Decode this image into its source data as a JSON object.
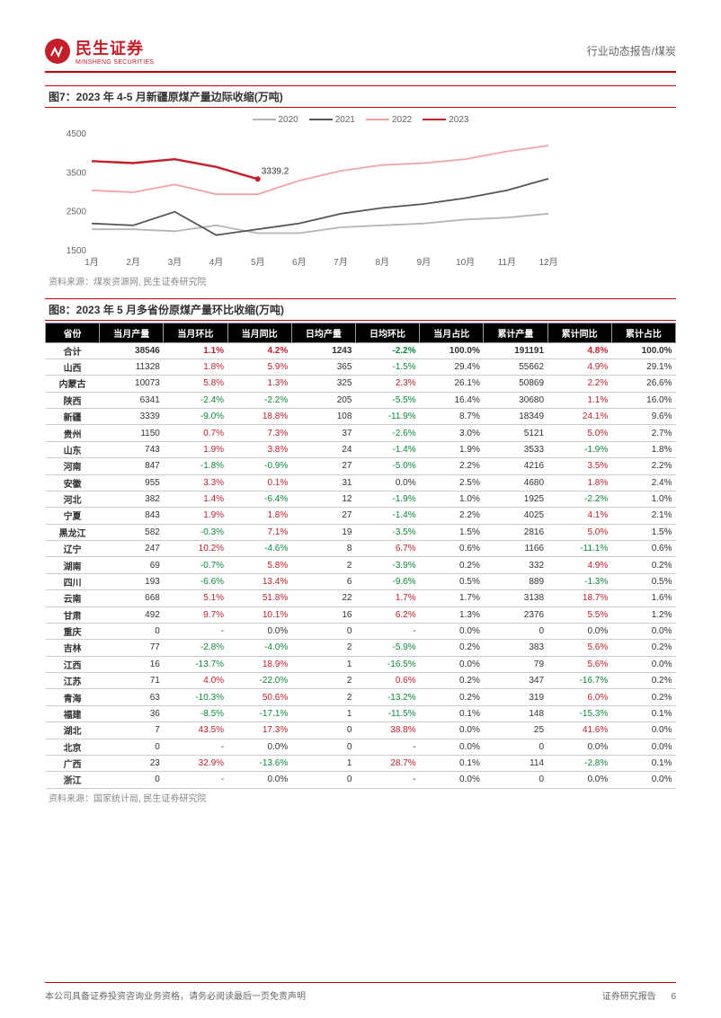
{
  "header": {
    "company_cn": "民生证券",
    "company_en": "MINSHENG SECURITIES",
    "doc_type": "行业动态报告/煤炭"
  },
  "figure7": {
    "title": "图7：2023 年 4-5 月新疆原煤产量边际收缩(万吨)",
    "source": "资料来源：煤炭资源网, 民生证券研究院",
    "type": "line",
    "categories": [
      "1月",
      "2月",
      "3月",
      "4月",
      "5月",
      "6月",
      "7月",
      "8月",
      "9月",
      "10月",
      "11月",
      "12月"
    ],
    "ylim": [
      1500,
      4500
    ],
    "ytick_step": 1000,
    "series": [
      {
        "name": "2020",
        "color": "#b5b5b5",
        "data": [
          2050,
          2050,
          2000,
          2150,
          1950,
          1950,
          2100,
          2150,
          2200,
          2300,
          2350,
          2450
        ]
      },
      {
        "name": "2021",
        "color": "#555555",
        "data": [
          2200,
          2150,
          2500,
          1900,
          2050,
          2200,
          2450,
          2600,
          2700,
          2850,
          3050,
          3350
        ]
      },
      {
        "name": "2022",
        "color": "#f2a3a3",
        "data": [
          3050,
          3000,
          3200,
          2950,
          2950,
          3300,
          3550,
          3700,
          3750,
          3850,
          4050,
          4200
        ]
      },
      {
        "name": "2023",
        "color": "#c41e2b",
        "data": [
          3800,
          3750,
          3850,
          3650,
          3339.2
        ]
      }
    ],
    "annotation": {
      "label": "3339.2",
      "x_index": 4,
      "y": 3339.2,
      "color": "#333"
    }
  },
  "figure8": {
    "title": "图8：2023 年 5 月多省份原煤产量环比收缩(万吨)",
    "source": "资料来源：国家统计局, 民生证券研究院",
    "columns": [
      "省份",
      "当月产量",
      "当月环比",
      "当月同比",
      "日均产量",
      "日均环比",
      "当月占比",
      "累计产量",
      "累计同比",
      "累计占比"
    ],
    "pos_color": "#c41e2b",
    "neg_color": "#0a8a3a",
    "neutral_color": "#333",
    "rows": [
      [
        "合计",
        38546,
        "1.1%",
        "4.2%",
        1243,
        "-2.2%",
        "100.0%",
        191191,
        "4.8%",
        "100.0%"
      ],
      [
        "山西",
        11328,
        "1.8%",
        "5.9%",
        365,
        "-1.5%",
        "29.4%",
        55662,
        "4.9%",
        "29.1%"
      ],
      [
        "内蒙古",
        10073,
        "5.8%",
        "1.3%",
        325,
        "2.3%",
        "26.1%",
        50869,
        "2.2%",
        "26.6%"
      ],
      [
        "陕西",
        6341,
        "-2.4%",
        "-2.2%",
        205,
        "-5.5%",
        "16.4%",
        30680,
        "1.1%",
        "16.0%"
      ],
      [
        "新疆",
        3339,
        "-9.0%",
        "18.8%",
        108,
        "-11.9%",
        "8.7%",
        18349,
        "24.1%",
        "9.6%"
      ],
      [
        "贵州",
        1150,
        "0.7%",
        "7.3%",
        37,
        "-2.6%",
        "3.0%",
        5121,
        "5.0%",
        "2.7%"
      ],
      [
        "山东",
        743,
        "1.9%",
        "3.8%",
        24,
        "-1.4%",
        "1.9%",
        3533,
        "-1.9%",
        "1.8%"
      ],
      [
        "河南",
        847,
        "-1.8%",
        "-0.9%",
        27,
        "-5.0%",
        "2.2%",
        4216,
        "3.5%",
        "2.2%"
      ],
      [
        "安徽",
        955,
        "3.3%",
        "0.1%",
        31,
        "0.0%",
        "2.5%",
        4680,
        "1.8%",
        "2.4%"
      ],
      [
        "河北",
        382,
        "1.4%",
        "-6.4%",
        12,
        "-1.9%",
        "1.0%",
        1925,
        "-2.2%",
        "1.0%"
      ],
      [
        "宁夏",
        843,
        "1.9%",
        "1.8%",
        27,
        "-1.4%",
        "2.2%",
        4025,
        "4.1%",
        "2.1%"
      ],
      [
        "黑龙江",
        582,
        "-0.3%",
        "7.1%",
        19,
        "-3.5%",
        "1.5%",
        2816,
        "5.0%",
        "1.5%"
      ],
      [
        "辽宁",
        247,
        "10.2%",
        "-4.6%",
        8,
        "6.7%",
        "0.6%",
        1166,
        "-11.1%",
        "0.6%"
      ],
      [
        "湖南",
        69,
        "-0.7%",
        "5.8%",
        2,
        "-3.9%",
        "0.2%",
        332,
        "4.9%",
        "0.2%"
      ],
      [
        "四川",
        193,
        "-6.6%",
        "13.4%",
        6,
        "-9.6%",
        "0.5%",
        889,
        "-1.3%",
        "0.5%"
      ],
      [
        "云南",
        668,
        "5.1%",
        "51.8%",
        22,
        "1.7%",
        "1.7%",
        3138,
        "18.7%",
        "1.6%"
      ],
      [
        "甘肃",
        492,
        "9.7%",
        "10.1%",
        16,
        "6.2%",
        "1.3%",
        2376,
        "5.5%",
        "1.2%"
      ],
      [
        "重庆",
        0,
        "-",
        "0.0%",
        0,
        "-",
        "0.0%",
        0,
        "0.0%",
        "0.0%"
      ],
      [
        "吉林",
        77,
        "-2.8%",
        "-4.0%",
        2,
        "-5.9%",
        "0.2%",
        383,
        "5.6%",
        "0.2%"
      ],
      [
        "江西",
        16,
        "-13.7%",
        "18.9%",
        1,
        "-16.5%",
        "0.0%",
        79,
        "5.6%",
        "0.0%"
      ],
      [
        "江苏",
        71,
        "4.0%",
        "-22.0%",
        2,
        "0.6%",
        "0.2%",
        347,
        "-16.7%",
        "0.2%"
      ],
      [
        "青海",
        63,
        "-10.3%",
        "50.6%",
        2,
        "-13.2%",
        "0.2%",
        319,
        "6.0%",
        "0.2%"
      ],
      [
        "福建",
        36,
        "-8.5%",
        "-17.1%",
        1,
        "-11.5%",
        "0.1%",
        148,
        "-15.3%",
        "0.1%"
      ],
      [
        "湖北",
        7,
        "43.5%",
        "17.3%",
        0,
        "38.8%",
        "0.0%",
        25,
        "41.6%",
        "0.0%"
      ],
      [
        "北京",
        0,
        "-",
        "0.0%",
        0,
        "-",
        "0.0%",
        0,
        "0.0%",
        "0.0%"
      ],
      [
        "广西",
        23,
        "32.9%",
        "-13.6%",
        1,
        "28.7%",
        "0.1%",
        114,
        "-2.8%",
        "0.1%"
      ],
      [
        "浙江",
        0,
        "-",
        "0.0%",
        0,
        "-",
        "0.0%",
        0,
        "0.0%",
        "0.0%"
      ]
    ]
  },
  "footer": {
    "left": "本公司具备证券投资咨询业务资格，请务必阅读最后一页免责声明",
    "right_label": "证券研究报告",
    "page_num": "6"
  }
}
